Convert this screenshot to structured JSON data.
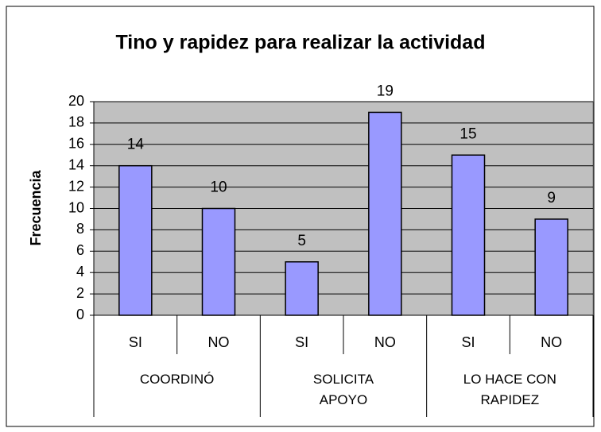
{
  "chart_data": {
    "type": "bar",
    "title": "Tino y rapidez para realizar la actividad",
    "y_label": "Frecuencia",
    "categories": [
      "SI",
      "NO",
      "SI",
      "NO",
      "SI",
      "NO"
    ],
    "groups": [
      "COORDINÓ",
      "SOLICITA APOYO",
      "LO HACE CON RAPIDEZ"
    ],
    "values": [
      14,
      10,
      5,
      19,
      15,
      9
    ],
    "color": "#9999ff",
    "ylim": [
      0,
      20
    ],
    "yticks": [
      0,
      2,
      4,
      6,
      8,
      10,
      12,
      14,
      16,
      18,
      20
    ],
    "grid": true
  }
}
